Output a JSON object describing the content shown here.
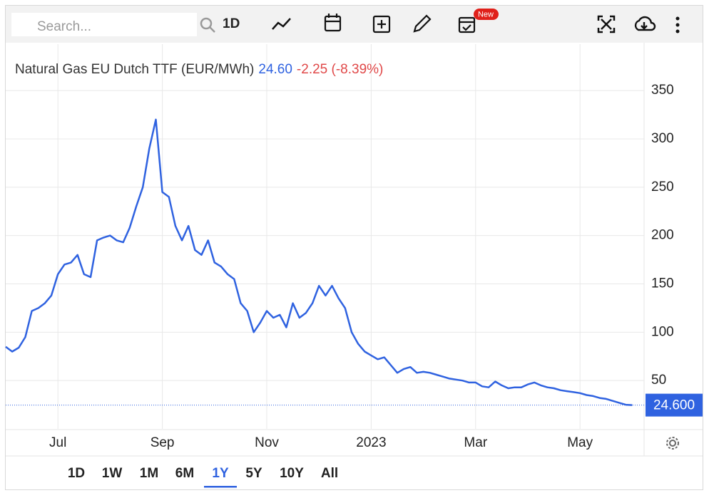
{
  "toolbar": {
    "search_placeholder": "Search...",
    "interval": "1D",
    "badge": "New"
  },
  "chart_data": {
    "type": "line",
    "title": "Natural Gas EU Dutch TTF (EUR/MWh)",
    "last": "24.60",
    "change": "-2.25 (-8.39%)",
    "last_price": {
      "value": 24.6,
      "label": "24.600"
    },
    "color": "#2f62e0",
    "categories": [
      null,
      null,
      null,
      null,
      null,
      null,
      null,
      null,
      "Jul",
      null,
      null,
      null,
      null,
      null,
      null,
      null,
      null,
      null,
      null,
      null,
      null,
      null,
      null,
      null,
      "Sep",
      null,
      null,
      null,
      null,
      null,
      null,
      null,
      null,
      null,
      null,
      null,
      null,
      null,
      null,
      null,
      "Nov",
      null,
      null,
      null,
      null,
      null,
      null,
      null,
      null,
      null,
      null,
      null,
      null,
      null,
      null,
      null,
      "2023",
      null,
      null,
      null,
      null,
      null,
      null,
      null,
      null,
      null,
      null,
      null,
      null,
      null,
      null,
      null,
      "Mar",
      null,
      null,
      null,
      null,
      null,
      null,
      null,
      null,
      null,
      null,
      null,
      null,
      null,
      null,
      null,
      "May",
      null,
      null,
      null,
      null,
      null,
      null,
      null,
      null
    ],
    "values": [
      85,
      80,
      84,
      95,
      122,
      125,
      130,
      138,
      160,
      170,
      172,
      180,
      160,
      157,
      195,
      198,
      200,
      195,
      193,
      208,
      230,
      250,
      290,
      320,
      245,
      240,
      210,
      195,
      210,
      185,
      180,
      195,
      172,
      168,
      160,
      155,
      130,
      122,
      100,
      110,
      122,
      115,
      118,
      105,
      130,
      115,
      120,
      130,
      148,
      138,
      148,
      135,
      125,
      100,
      88,
      80,
      76,
      72,
      74,
      66,
      58,
      62,
      64,
      58,
      59,
      58,
      56,
      54,
      52,
      51,
      50,
      48,
      48,
      44,
      43,
      49,
      45,
      42,
      43,
      43,
      46,
      48,
      45,
      43,
      42,
      40,
      39,
      38,
      37,
      35,
      34,
      32,
      31,
      29,
      27,
      25,
      24.6
    ],
    "ylim": [
      0,
      398
    ],
    "yticks": [
      50,
      100,
      150,
      200,
      250,
      300,
      350
    ],
    "grid": true
  },
  "range_buttons": [
    "1D",
    "1W",
    "1M",
    "6M",
    "1Y",
    "5Y",
    "10Y",
    "All"
  ],
  "active_range": 4
}
